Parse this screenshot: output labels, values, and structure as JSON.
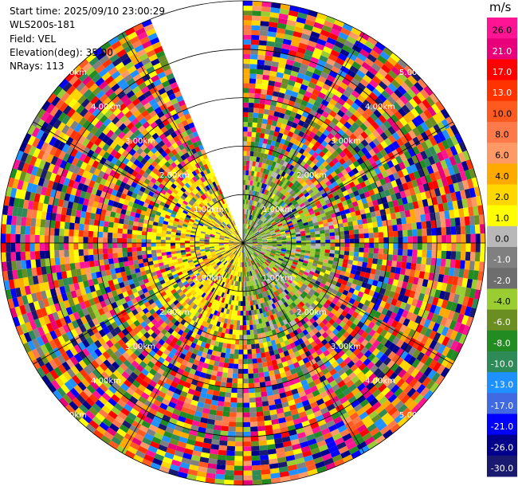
{
  "info": {
    "start_time": "Start time: 2025/09/10 23:00:29",
    "instrument": "WLS200s-181",
    "field": "Field: VEL",
    "elevation": "Elevation(deg): 35.00",
    "nrays": "NRays: 113"
  },
  "colorbar": {
    "unit": "m/s",
    "ticks": [
      "26.0",
      "21.0",
      "17.0",
      "13.0",
      "10.0",
      "8.0",
      "6.0",
      "4.0",
      "2.0",
      "1.0",
      "0.0",
      "-1.0",
      "-2.0",
      "-4.0",
      "-6.0",
      "-8.0",
      "-10.0",
      "-13.0",
      "-17.0",
      "-21.0",
      "-26.0",
      "-30.0"
    ],
    "colors": [
      "#ff1493",
      "#e8007a",
      "#ff0000",
      "#ff3300",
      "#ff5a1f",
      "#ff7a4a",
      "#ff9966",
      "#ffaa00",
      "#ffd700",
      "#ffff00",
      "#b8b8b8",
      "#808080",
      "#6e6e6e",
      "#9acd32",
      "#6b8e23",
      "#228b22",
      "#2e8b57",
      "#1e90ff",
      "#4169e1",
      "#0000ff",
      "#00008b",
      "#191970"
    ]
  },
  "chart_data": {
    "type": "ppi",
    "field": "VEL",
    "units": "m/s",
    "elevation_deg": 35.0,
    "n_rays": 113,
    "range_rings_km": [
      1.0,
      2.0,
      3.0,
      4.0,
      5.0
    ],
    "ring_labels": [
      "1.00km",
      "2.00km",
      "3.00km",
      "4.00km",
      "5.00km"
    ],
    "max_range_km": 5.0,
    "gap_sector_deg": [
      0,
      22
    ],
    "regions": [
      {
        "sector": "west near range",
        "dominant_velocity_ms": [
          2.0,
          4.0
        ]
      },
      {
        "sector": "east near range",
        "dominant_velocity_ms": [
          -4.0,
          -1.0
        ]
      },
      {
        "sector": "outer ranges",
        "dominant_velocity_ms": "noisy, full scale"
      }
    ]
  }
}
